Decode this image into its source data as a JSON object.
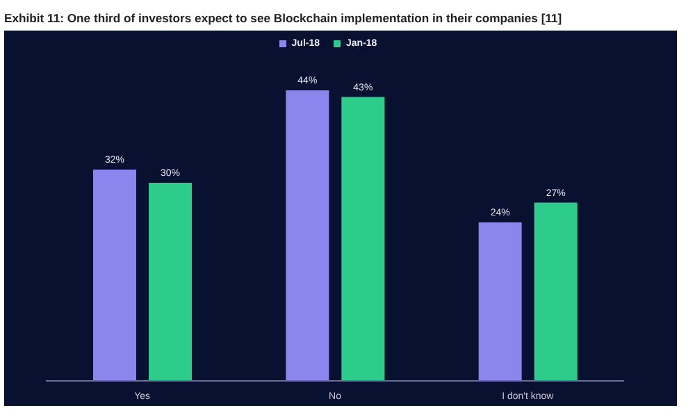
{
  "chart_data": {
    "type": "bar",
    "title": "Exhibit 11: One third of investors expect to see Blockchain implementation in their companies [11]",
    "categories": [
      "Yes",
      "No",
      "I don't know"
    ],
    "series": [
      {
        "name": "Jul-18",
        "color": "#8b86ee",
        "values": [
          32,
          44,
          24
        ],
        "value_labels": [
          "32%",
          "44%",
          "24%"
        ]
      },
      {
        "name": "Jan-18",
        "color": "#2ecc8a",
        "values": [
          30,
          43,
          27
        ],
        "value_labels": [
          "30%",
          "43%",
          "27%"
        ]
      }
    ],
    "legend": "top",
    "grid": false
  }
}
